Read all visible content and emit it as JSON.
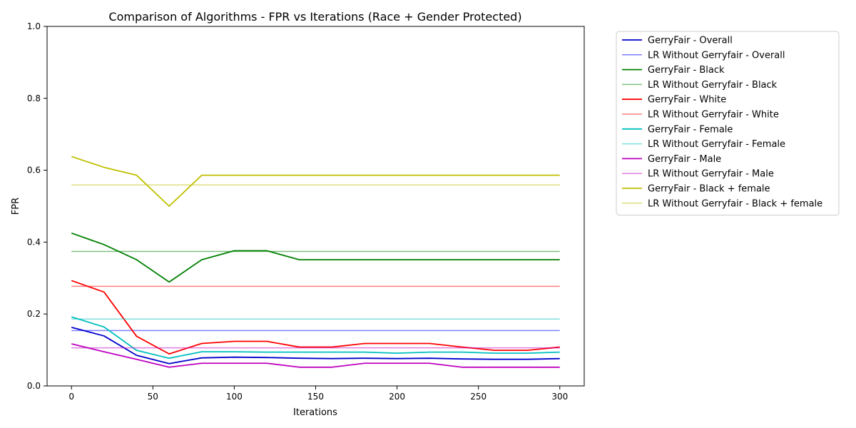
{
  "chart_data": {
    "type": "line",
    "title": "Comparison of Algorithms - FPR vs Iterations (Race + Gender Protected)",
    "xlabel": "Iterations",
    "ylabel": "FPR",
    "xlim": [
      -15,
      315
    ],
    "ylim": [
      0,
      1.0
    ],
    "xticks": [
      0,
      50,
      100,
      150,
      200,
      250,
      300
    ],
    "xtick_labels": [
      "0",
      "50",
      "100",
      "150",
      "200",
      "250",
      "300"
    ],
    "yticks": [
      0,
      0.2,
      0.4,
      0.6,
      0.8,
      1.0
    ],
    "ytick_labels": [
      "0.0",
      "0.2",
      "0.4",
      "0.6",
      "0.8",
      "1.0"
    ],
    "grid": false,
    "legend_position": "outside-top-right",
    "x": [
      0,
      20,
      40,
      60,
      80,
      100,
      120,
      140,
      160,
      180,
      200,
      220,
      240,
      260,
      280,
      300
    ],
    "series": [
      {
        "name": "GerryFair - Overall",
        "color": "#0000cc",
        "alpha": 1.0,
        "values": [
          0.163,
          0.139,
          0.085,
          0.062,
          0.078,
          0.08,
          0.079,
          0.077,
          0.076,
          0.077,
          0.076,
          0.077,
          0.075,
          0.074,
          0.074,
          0.076
        ]
      },
      {
        "name": "LR Without Gerryfair - Overall",
        "color": "#0000ff",
        "alpha": 0.5,
        "values": [
          0.154,
          0.154,
          0.154,
          0.154,
          0.154,
          0.154,
          0.154,
          0.154,
          0.154,
          0.154,
          0.154,
          0.154,
          0.154,
          0.154,
          0.154,
          0.154
        ]
      },
      {
        "name": "GerryFair - Black",
        "color": "#008000",
        "alpha": 1.0,
        "values": [
          0.425,
          0.393,
          0.351,
          0.289,
          0.351,
          0.376,
          0.376,
          0.351,
          0.351,
          0.351,
          0.351,
          0.351,
          0.351,
          0.351,
          0.351,
          0.351
        ]
      },
      {
        "name": "LR Without Gerryfair - Black",
        "color": "#008000",
        "alpha": 0.5,
        "values": [
          0.374,
          0.374,
          0.374,
          0.374,
          0.374,
          0.374,
          0.374,
          0.374,
          0.374,
          0.374,
          0.374,
          0.374,
          0.374,
          0.374,
          0.374,
          0.374
        ]
      },
      {
        "name": "GerryFair - White",
        "color": "#ff0000",
        "alpha": 1.0,
        "values": [
          0.293,
          0.261,
          0.138,
          0.089,
          0.118,
          0.124,
          0.124,
          0.108,
          0.108,
          0.118,
          0.118,
          0.118,
          0.108,
          0.099,
          0.099,
          0.108
        ]
      },
      {
        "name": "LR Without Gerryfair - White",
        "color": "#ff0000",
        "alpha": 0.5,
        "values": [
          0.277,
          0.277,
          0.277,
          0.277,
          0.277,
          0.277,
          0.277,
          0.277,
          0.277,
          0.277,
          0.277,
          0.277,
          0.277,
          0.277,
          0.277,
          0.277
        ]
      },
      {
        "name": "GerryFair - Female",
        "color": "#00bfbf",
        "alpha": 1.0,
        "values": [
          0.192,
          0.164,
          0.099,
          0.077,
          0.095,
          0.095,
          0.094,
          0.094,
          0.094,
          0.094,
          0.091,
          0.094,
          0.094,
          0.091,
          0.091,
          0.094
        ]
      },
      {
        "name": "LR Without Gerryfair - Female",
        "color": "#00bfbf",
        "alpha": 0.5,
        "values": [
          0.186,
          0.186,
          0.186,
          0.186,
          0.186,
          0.186,
          0.186,
          0.186,
          0.186,
          0.186,
          0.186,
          0.186,
          0.186,
          0.186,
          0.186,
          0.186
        ]
      },
      {
        "name": "GerryFair - Male",
        "color": "#bf00bf",
        "alpha": 1.0,
        "values": [
          0.117,
          0.095,
          0.074,
          0.052,
          0.063,
          0.063,
          0.063,
          0.052,
          0.052,
          0.063,
          0.063,
          0.063,
          0.052,
          0.052,
          0.052,
          0.052
        ]
      },
      {
        "name": "LR Without Gerryfair - Male",
        "color": "#bf00bf",
        "alpha": 0.5,
        "values": [
          0.106,
          0.106,
          0.106,
          0.106,
          0.106,
          0.106,
          0.106,
          0.106,
          0.106,
          0.106,
          0.106,
          0.106,
          0.106,
          0.106,
          0.106,
          0.106
        ]
      },
      {
        "name": "GerryFair - Black + female",
        "color": "#bfbf00",
        "alpha": 1.0,
        "values": [
          0.638,
          0.608,
          0.586,
          0.5,
          0.586,
          0.586,
          0.586,
          0.586,
          0.586,
          0.586,
          0.586,
          0.586,
          0.586,
          0.586,
          0.586,
          0.586
        ]
      },
      {
        "name": "LR Without Gerryfair - Black + female",
        "color": "#bfbf00",
        "alpha": 0.5,
        "values": [
          0.559,
          0.559,
          0.559,
          0.559,
          0.559,
          0.559,
          0.559,
          0.559,
          0.559,
          0.559,
          0.559,
          0.559,
          0.559,
          0.559,
          0.559,
          0.559
        ]
      }
    ]
  }
}
